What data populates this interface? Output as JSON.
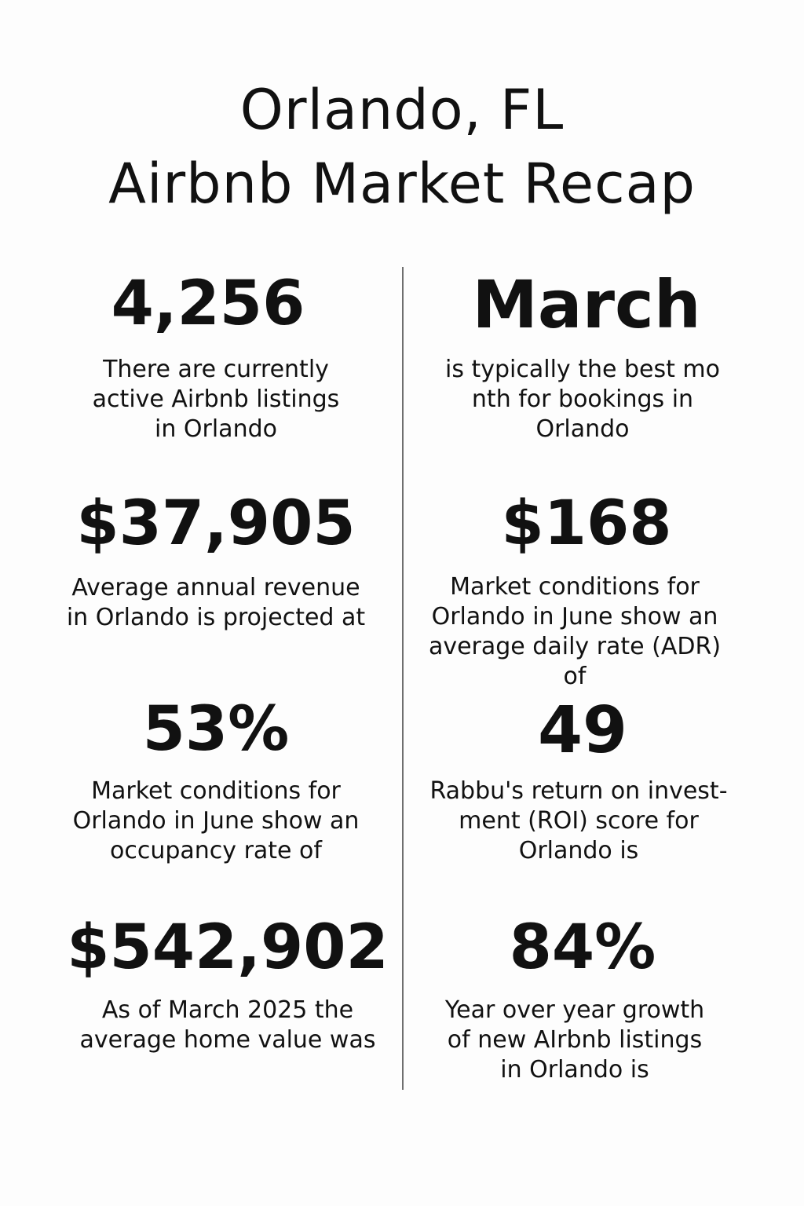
{
  "title": {
    "line1": "Orlando, FL",
    "line2": "Airbnb Market Recap"
  },
  "stats": {
    "listings": {
      "value": "4,256",
      "lines": [
        "There are currently",
        "active Airbnb listings",
        "in Orlando"
      ]
    },
    "best_month": {
      "value": "March",
      "lines": [
        "is typically the best mo",
        "nth for bookings in",
        "Orlando"
      ]
    },
    "annual_revenue": {
      "value": "$37,905",
      "lines": [
        "Average annual revenue",
        "in Orlando is projected at"
      ]
    },
    "adr": {
      "value": "$168",
      "lines": [
        "Market conditions for",
        "Orlando in June show an",
        "average daily rate (ADR)",
        "of"
      ]
    },
    "occupancy": {
      "value": "53%",
      "lines": [
        "Market conditions for",
        "Orlando in June show an",
        "occupancy rate of"
      ]
    },
    "roi": {
      "value": "49",
      "lines": [
        "Rabbu's return on invest-",
        "ment (ROI) score for",
        "Orlando is"
      ]
    },
    "home_value": {
      "value": "$542,902",
      "lines": [
        "As of March 2025 the",
        "average home value was"
      ]
    },
    "listing_growth": {
      "value": "84%",
      "lines": [
        "Year over year growth",
        "of new AIrbnb listings",
        "in Orlando is"
      ]
    }
  }
}
